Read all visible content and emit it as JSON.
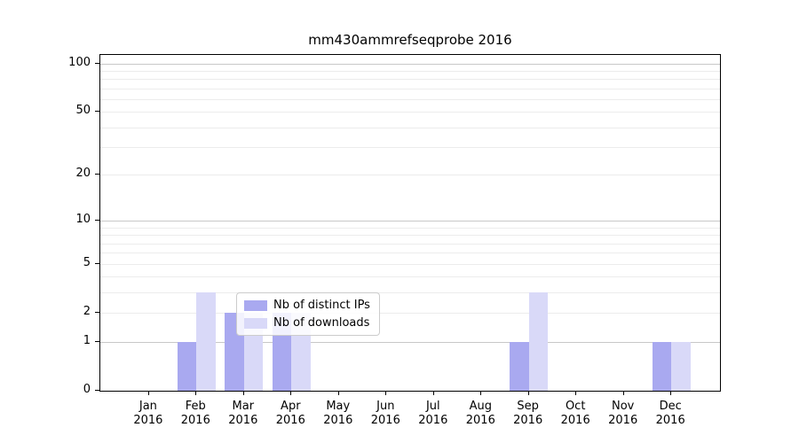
{
  "figure": {
    "background": "#ffffff"
  },
  "chart_data": {
    "type": "bar",
    "title": "mm430ammrefseqprobe 2016",
    "categories": [
      "Jan",
      "Feb",
      "Mar",
      "Apr",
      "May",
      "Jun",
      "Jul",
      "Aug",
      "Sep",
      "Oct",
      "Nov",
      "Dec"
    ],
    "year_label": "2016",
    "series": [
      {
        "name": "Nb of distinct IPs",
        "color": "#a9a9f0",
        "values": [
          0,
          1,
          2,
          2,
          0,
          0,
          0,
          0,
          1,
          0,
          0,
          1
        ]
      },
      {
        "name": "Nb of downloads",
        "color": "#d9d9f8",
        "values": [
          0,
          3,
          2,
          2,
          0,
          0,
          0,
          0,
          3,
          0,
          0,
          1
        ]
      }
    ],
    "yscale": "log10(1+x)",
    "ylim": [
      0,
      113
    ],
    "yticks": [
      {
        "value": 0,
        "label": "0"
      },
      {
        "value": 1,
        "label": "1"
      },
      {
        "value": 2,
        "label": "2"
      },
      {
        "value": 5,
        "label": "5"
      },
      {
        "value": 10,
        "label": "10"
      },
      {
        "value": 20,
        "label": "20"
      },
      {
        "value": 50,
        "label": "50"
      },
      {
        "value": 100,
        "label": "100"
      }
    ],
    "gridlines": {
      "major_values": [
        1,
        10,
        100
      ],
      "minor_values": [
        2,
        3,
        4,
        5,
        6,
        7,
        8,
        9,
        20,
        30,
        40,
        50,
        60,
        70,
        80,
        90
      ],
      "major_color": "#c8c8c8",
      "minor_color": "#ececec"
    },
    "grid_on": true,
    "legend_position": "lower center",
    "bar_width_fraction": 0.4
  }
}
